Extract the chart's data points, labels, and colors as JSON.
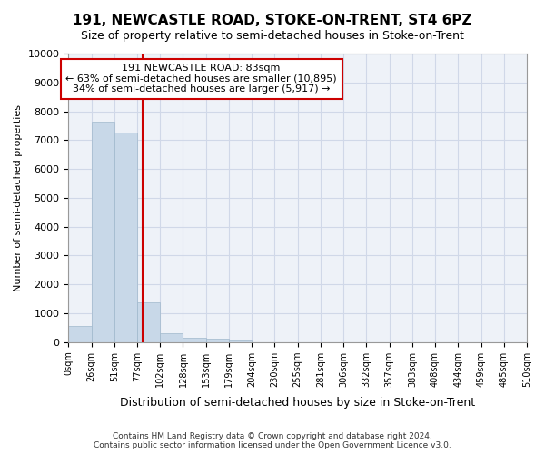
{
  "title": "191, NEWCASTLE ROAD, STOKE-ON-TRENT, ST4 6PZ",
  "subtitle": "Size of property relative to semi-detached houses in Stoke-on-Trent",
  "xlabel": "Distribution of semi-detached houses by size in Stoke-on-Trent",
  "ylabel": "Number of semi-detached properties",
  "footer_line1": "Contains HM Land Registry data © Crown copyright and database right 2024.",
  "footer_line2": "Contains public sector information licensed under the Open Government Licence v3.0.",
  "bin_labels": [
    "0sqm",
    "26sqm",
    "51sqm",
    "77sqm",
    "102sqm",
    "128sqm",
    "153sqm",
    "179sqm",
    "204sqm",
    "230sqm",
    "255sqm",
    "281sqm",
    "306sqm",
    "332sqm",
    "357sqm",
    "383sqm",
    "408sqm",
    "434sqm",
    "459sqm",
    "485sqm",
    "510sqm"
  ],
  "bar_values": [
    560,
    7630,
    7270,
    1360,
    310,
    160,
    110,
    85,
    0,
    0,
    0,
    0,
    0,
    0,
    0,
    0,
    0,
    0,
    0,
    0
  ],
  "bar_color": "#c8d8e8",
  "bar_edge_color": "#a0b8cc",
  "ylim": [
    0,
    10000
  ],
  "yticks": [
    0,
    1000,
    2000,
    3000,
    4000,
    5000,
    6000,
    7000,
    8000,
    9000,
    10000
  ],
  "annotation_title": "191 NEWCASTLE ROAD: 83sqm",
  "annotation_line1": "← 63% of semi-detached houses are smaller (10,895)",
  "annotation_line2": "34% of semi-detached houses are larger (5,917) →",
  "annotation_box_color": "#ffffff",
  "annotation_box_edge_color": "#cc0000",
  "red_line_color": "#cc0000",
  "red_line_x": 3.24,
  "grid_color": "#d0d8e8",
  "background_color": "#eef2f8"
}
